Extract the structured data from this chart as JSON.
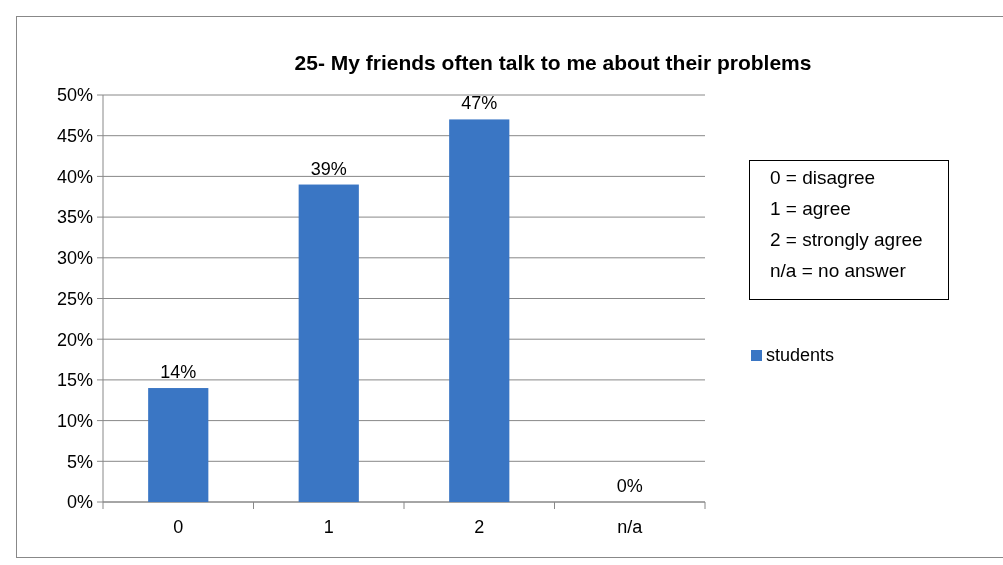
{
  "chart_data": {
    "type": "bar",
    "title": "25- My friends often talk to me about their problems",
    "categories": [
      "0",
      "1",
      "2",
      "n/a"
    ],
    "series": [
      {
        "name": "students",
        "color": "#3a76c4",
        "values": [
          14,
          39,
          47,
          0
        ],
        "value_labels": [
          "14%",
          "39%",
          "47%",
          "0%"
        ]
      }
    ],
    "ylim": [
      0,
      50
    ],
    "yticks": [
      {
        "value": 0,
        "label": "0%"
      },
      {
        "value": 5,
        "label": "5%"
      },
      {
        "value": 10,
        "label": "10%"
      },
      {
        "value": 15,
        "label": "15%"
      },
      {
        "value": 20,
        "label": "20%"
      },
      {
        "value": 25,
        "label": "25%"
      },
      {
        "value": 30,
        "label": "30%"
      },
      {
        "value": 35,
        "label": "35%"
      },
      {
        "value": 40,
        "label": "40%"
      },
      {
        "value": 45,
        "label": "45%"
      },
      {
        "value": 50,
        "label": "50%"
      }
    ],
    "grid": "y",
    "legend": "right",
    "annotations": [
      "0 = disagree",
      "1 = agree",
      "2 = strongly agree",
      "n/a = no answer"
    ]
  }
}
